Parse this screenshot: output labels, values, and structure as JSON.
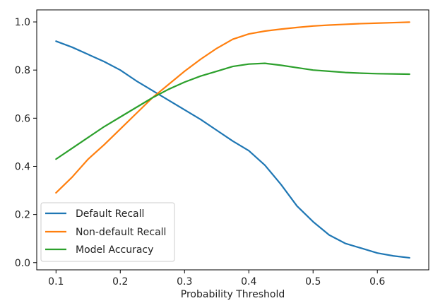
{
  "chart_data": {
    "type": "line",
    "title": "",
    "xlabel": "Probability Threshold",
    "ylabel": "",
    "xlim": [
      0.07,
      0.68
    ],
    "ylim": [
      -0.03,
      1.05
    ],
    "x_ticks": [
      0.1,
      0.2,
      0.3,
      0.4,
      0.5,
      0.6
    ],
    "x_tick_labels": [
      "0.1",
      "0.2",
      "0.3",
      "0.4",
      "0.5",
      "0.6"
    ],
    "y_ticks": [
      0.0,
      0.2,
      0.4,
      0.6,
      0.8,
      1.0
    ],
    "y_tick_labels": [
      "0.0",
      "0.2",
      "0.4",
      "0.6",
      "0.8",
      "1.0"
    ],
    "grid": false,
    "legend_position": "lower-left",
    "x": [
      0.1,
      0.125,
      0.15,
      0.175,
      0.2,
      0.225,
      0.25,
      0.275,
      0.3,
      0.325,
      0.35,
      0.375,
      0.4,
      0.425,
      0.45,
      0.475,
      0.5,
      0.525,
      0.55,
      0.575,
      0.6,
      0.625,
      0.65
    ],
    "series": [
      {
        "name": "Default Recall",
        "color": "#1f77b4",
        "values": [
          0.92,
          0.895,
          0.865,
          0.835,
          0.8,
          0.755,
          0.715,
          0.675,
          0.635,
          0.595,
          0.55,
          0.505,
          0.465,
          0.405,
          0.325,
          0.235,
          0.17,
          0.115,
          0.08,
          0.06,
          0.04,
          0.028,
          0.02
        ]
      },
      {
        "name": "Non-default Recall",
        "color": "#ff7f0e",
        "values": [
          0.29,
          0.355,
          0.43,
          0.49,
          0.555,
          0.62,
          0.685,
          0.74,
          0.795,
          0.845,
          0.89,
          0.928,
          0.95,
          0.962,
          0.97,
          0.977,
          0.983,
          0.987,
          0.99,
          0.993,
          0.995,
          0.997,
          0.999
        ]
      },
      {
        "name": "Model Accuracy",
        "color": "#2ca02c",
        "values": [
          0.43,
          0.475,
          0.52,
          0.565,
          0.605,
          0.645,
          0.685,
          0.72,
          0.75,
          0.775,
          0.795,
          0.815,
          0.825,
          0.828,
          0.82,
          0.81,
          0.8,
          0.795,
          0.79,
          0.787,
          0.785,
          0.784,
          0.783
        ]
      }
    ]
  }
}
